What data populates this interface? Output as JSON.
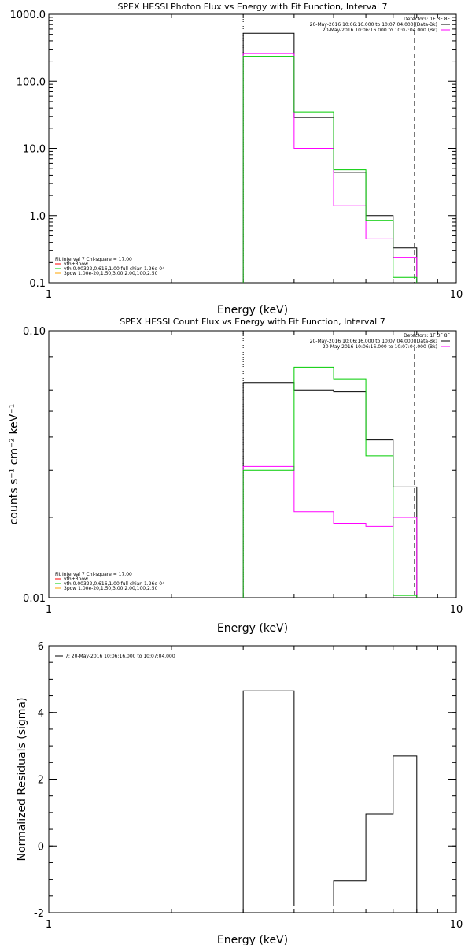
{
  "chart_data": [
    {
      "type": "line",
      "title": "SPEX HESSI Photon Flux vs Energy with Fit Function, Interval 7",
      "xlabel": "Energy (keV)",
      "ylabel": "",
      "xscale": "log",
      "yscale": "log",
      "xlim": [
        1,
        10
      ],
      "ylim": [
        0.1,
        1000
      ],
      "x_ticks": [
        "1",
        "10"
      ],
      "y_ticks": [
        "0.1",
        "1.0",
        "10.0",
        "100.0",
        "1000.0"
      ],
      "x_edges": [
        3,
        4,
        5,
        6,
        7,
        8
      ],
      "series": [
        {
          "name": "20-May-2016 10:06:16.000 to 10:07:04.000 (Data-Bk)",
          "color": "#000000",
          "values": [
            520,
            29,
            4.4,
            1.0,
            0.33
          ]
        },
        {
          "name": "20-May-2016 10:06:16.000 to 10:07:04.000 (Bk)",
          "color": "#ff00ff",
          "values": [
            260,
            10,
            1.4,
            0.45,
            0.24
          ]
        },
        {
          "name": "vth 0.00322,0.616,1.00  full chian 1.26e-04",
          "color": "#00cc00",
          "values": [
            235,
            35,
            4.8,
            0.85,
            0.12
          ]
        }
      ],
      "vlines": [
        {
          "x": 3.0,
          "style": "dotted"
        },
        {
          "x": 7.9,
          "style": "dashed"
        }
      ],
      "legend_top": {
        "header": "Detectors: 1F 3F 8F",
        "placement": "top-right"
      },
      "legend_bottom": {
        "placement": "bottom-left",
        "lines": [
          {
            "text": "Fit Interval 7    Chi-square = 17.00",
            "color": ""
          },
          {
            "text": "vth+3pow",
            "color": "#ff0000"
          },
          {
            "text": "vth 0.00322,0.616,1.00  full chian 1.26e-04",
            "color": "#00cc00"
          },
          {
            "text": "3pow 1.00e-20,1.50,3.00,2.00,100,2.50",
            "color": "#ffa500"
          }
        ]
      }
    },
    {
      "type": "line",
      "title": "SPEX HESSI Count Flux vs Energy with Fit Function, Interval 7",
      "xlabel": "Energy (keV)",
      "ylabel": "counts s⁻¹ cm⁻² keV⁻¹",
      "xscale": "log",
      "yscale": "log",
      "xlim": [
        1,
        10
      ],
      "ylim": [
        0.01,
        0.1
      ],
      "x_ticks": [
        "1",
        "10"
      ],
      "y_ticks": [
        "0.01",
        "0.10"
      ],
      "x_edges": [
        3,
        4,
        5,
        6,
        7,
        8
      ],
      "series": [
        {
          "name": "20-May-2016 10:06:16.000 to 10:07:04.000 (Data-Bk)",
          "color": "#000000",
          "values": [
            0.064,
            0.06,
            0.059,
            0.039,
            0.026
          ]
        },
        {
          "name": "20-May-2016 10:06:16.000 to 10:07:04.000 (Bk)",
          "color": "#ff00ff",
          "values": [
            0.031,
            0.021,
            0.019,
            0.0185,
            0.02
          ]
        },
        {
          "name": "vth 0.00322,0.616,1.00  full chian 1.26e-04",
          "color": "#00cc00",
          "values": [
            0.03,
            0.073,
            0.066,
            0.034,
            0.0102
          ]
        }
      ],
      "vlines": [
        {
          "x": 3.0,
          "style": "dotted"
        },
        {
          "x": 7.9,
          "style": "dashed"
        }
      ],
      "legend_top": {
        "header": "Detectors: 1F 3F 8F",
        "placement": "top-right"
      },
      "legend_bottom": {
        "placement": "bottom-left",
        "lines": [
          {
            "text": "Fit Interval 7    Chi-square = 17.00",
            "color": ""
          },
          {
            "text": "vth+3pow",
            "color": "#ff0000"
          },
          {
            "text": "vth 0.00322,0.616,1.00  full chian 1.26e-04",
            "color": "#00cc00"
          },
          {
            "text": "3pow 1.00e-20,1.50,3.00,2.00,100,2.50",
            "color": "#ffa500"
          }
        ]
      }
    },
    {
      "type": "line",
      "title": "",
      "xlabel": "Energy (keV)",
      "ylabel": "Normalized Residuals (sigma)",
      "xscale": "log",
      "yscale": "linear",
      "xlim": [
        1,
        10
      ],
      "ylim": [
        -2,
        6
      ],
      "x_ticks": [
        "1",
        "10"
      ],
      "y_ticks": [
        "-2",
        "0",
        "2",
        "4",
        "6"
      ],
      "x_edges": [
        3,
        4,
        5,
        6,
        7,
        8
      ],
      "series": [
        {
          "name": "7: 20-May-2016 10:06:16.000 to 10:07:04.000",
          "color": "#000000",
          "values": [
            4.65,
            -1.8,
            -1.05,
            0.95,
            2.7
          ]
        }
      ],
      "legend_placement": "top-left"
    }
  ]
}
